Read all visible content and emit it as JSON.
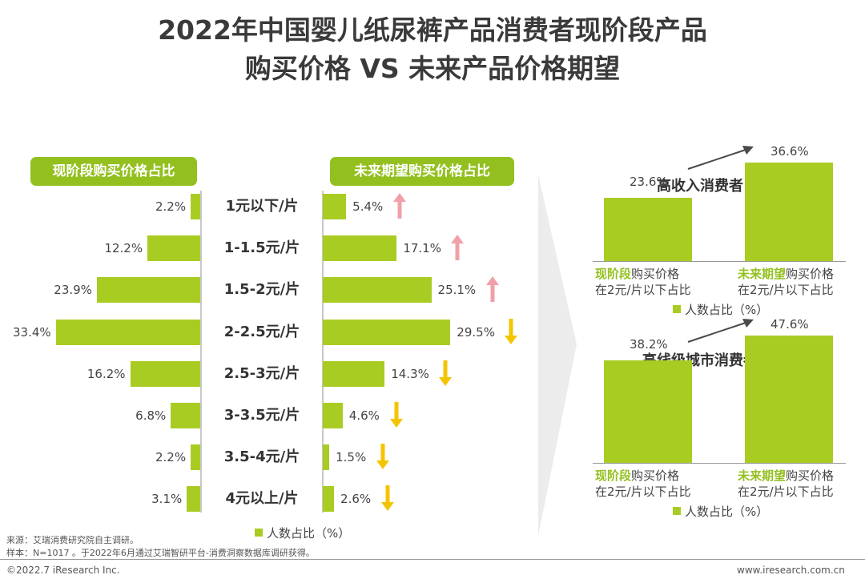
{
  "title": {
    "line1": "2022年中国婴儿纸尿裤产品消费者现阶段产品",
    "line2": "购买价格 VS 未来产品价格期望"
  },
  "left_header": "现阶段购买价格占比",
  "right_header": "未来期望购买价格占比",
  "rows": [
    {
      "range": "1元以下/片",
      "current": 2.2,
      "current_label": "2.2%",
      "future": 5.4,
      "future_label": "5.4%",
      "trend": "up"
    },
    {
      "range": "1-1.5元/片",
      "current": 12.2,
      "current_label": "12.2%",
      "future": 17.1,
      "future_label": "17.1%",
      "trend": "up"
    },
    {
      "range": "1.5-2元/片",
      "current": 23.9,
      "current_label": "23.9%",
      "future": 25.1,
      "future_label": "25.1%",
      "trend": "up"
    },
    {
      "range": "2-2.5元/片",
      "current": 33.4,
      "current_label": "33.4%",
      "future": 29.5,
      "future_label": "29.5%",
      "trend": "down"
    },
    {
      "range": "2.5-3元/片",
      "current": 16.2,
      "current_label": "16.2%",
      "future": 14.3,
      "future_label": "14.3%",
      "trend": "down"
    },
    {
      "range": "3-3.5元/片",
      "current": 6.8,
      "current_label": "6.8%",
      "future": 4.6,
      "future_label": "4.6%",
      "trend": "down"
    },
    {
      "range": "3.5-4元/片",
      "current": 2.2,
      "current_label": "2.2%",
      "future": 1.5,
      "future_label": "1.5%",
      "trend": "down"
    },
    {
      "range": "4元以上/片",
      "current": 3.1,
      "current_label": "3.1%",
      "future": 2.6,
      "future_label": "2.6%",
      "trend": "down"
    }
  ],
  "legend": "人数占比（%）",
  "panels": [
    {
      "title": "高收入消费者",
      "current": 23.6,
      "current_label": "23.6%",
      "future": 36.6,
      "future_label": "36.6%",
      "label_current_bold": "现阶段",
      "label_current_rest": "购买价格",
      "label_future_bold": "未来期望",
      "label_future_rest": "购买价格",
      "sub": "在2元/片以下占比",
      "legend": "人数占比（%）"
    },
    {
      "title": "高线级城市消费者",
      "current": 38.2,
      "current_label": "38.2%",
      "future": 47.6,
      "future_label": "47.6%",
      "label_current_bold": "现阶段",
      "label_current_rest": "购买价格",
      "label_future_bold": "未来期望",
      "label_future_rest": "购买价格",
      "sub": "在2元/片以下占比",
      "legend": "人数占比（%）"
    }
  ],
  "footer": {
    "source": "来源：艾瑞消费研究院自主调研。",
    "sample": "样本：N=1017 。于2022年6月通过艾瑞智研平台-消费洞察数据库调研获得。",
    "copyright": "©2022.7 iResearch Inc.",
    "site": "www.iresearch.com.cn"
  },
  "colors": {
    "bar": "#a9cc22",
    "header": "#93c01f",
    "up": "#f0a0a8",
    "down": "#f5c400"
  }
}
